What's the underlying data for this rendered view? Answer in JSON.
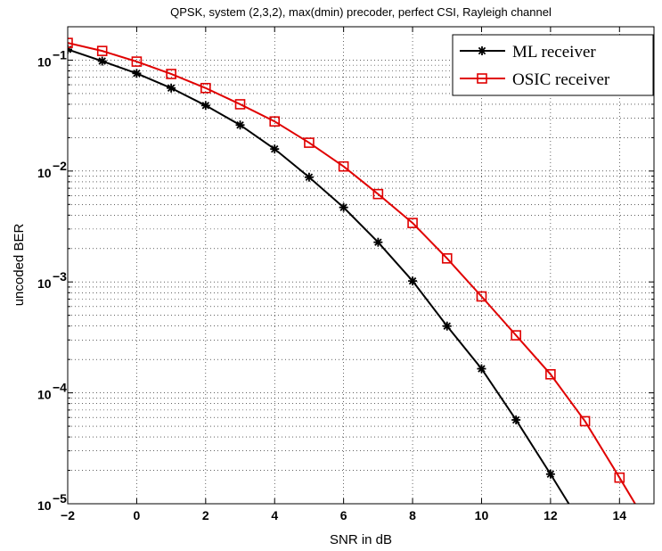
{
  "chart_data": {
    "type": "line",
    "title": "QPSK, system (2,3,2), max(dmin) precoder, perfect CSI, Rayleigh channel",
    "xlabel": "SNR in dB",
    "ylabel": "uncoded BER",
    "xlim": [
      -2,
      15
    ],
    "ylim": [
      1e-05,
      0.2
    ],
    "yscale": "log",
    "grid": true,
    "legend_position": "top-right",
    "x_ticks": [
      -2,
      0,
      2,
      4,
      6,
      8,
      10,
      12,
      14
    ],
    "x_tick_labels": [
      "−2",
      "0",
      "2",
      "4",
      "6",
      "8",
      "10",
      "12",
      "14"
    ],
    "y_ticks": [
      0.1,
      0.01,
      0.001,
      0.0001,
      1e-05
    ],
    "y_tick_labels": [
      {
        "base": "10",
        "exp": "−1"
      },
      {
        "base": "10",
        "exp": "−2"
      },
      {
        "base": "10",
        "exp": "−3"
      },
      {
        "base": "10",
        "exp": "−4"
      },
      {
        "base": "10",
        "exp": "−5"
      }
    ],
    "series": [
      {
        "name": "ML receiver",
        "color": "#000000",
        "marker": "asterisk",
        "x": [
          -2,
          -1,
          0,
          1,
          2,
          3,
          4,
          5,
          6,
          7,
          8,
          9,
          10,
          11,
          12,
          13
        ],
        "y": [
          0.125,
          0.098,
          0.076,
          0.056,
          0.039,
          0.026,
          0.0158,
          0.0088,
          0.0047,
          0.00228,
          0.00102,
          0.0004,
          0.000165,
          5.7e-05,
          1.85e-05,
          5.8e-06
        ]
      },
      {
        "name": "OSIC receiver",
        "color": "#e00000",
        "marker": "square",
        "x": [
          -2,
          -1,
          0,
          1,
          2,
          3,
          4,
          5,
          6,
          7,
          8,
          9,
          10,
          11,
          12,
          13,
          14,
          15
        ],
        "y": [
          0.143,
          0.121,
          0.097,
          0.075,
          0.056,
          0.04,
          0.028,
          0.018,
          0.011,
          0.0062,
          0.0034,
          0.00163,
          0.00074,
          0.00033,
          0.000147,
          5.55e-05,
          1.72e-05,
          5.2e-06
        ]
      }
    ]
  }
}
